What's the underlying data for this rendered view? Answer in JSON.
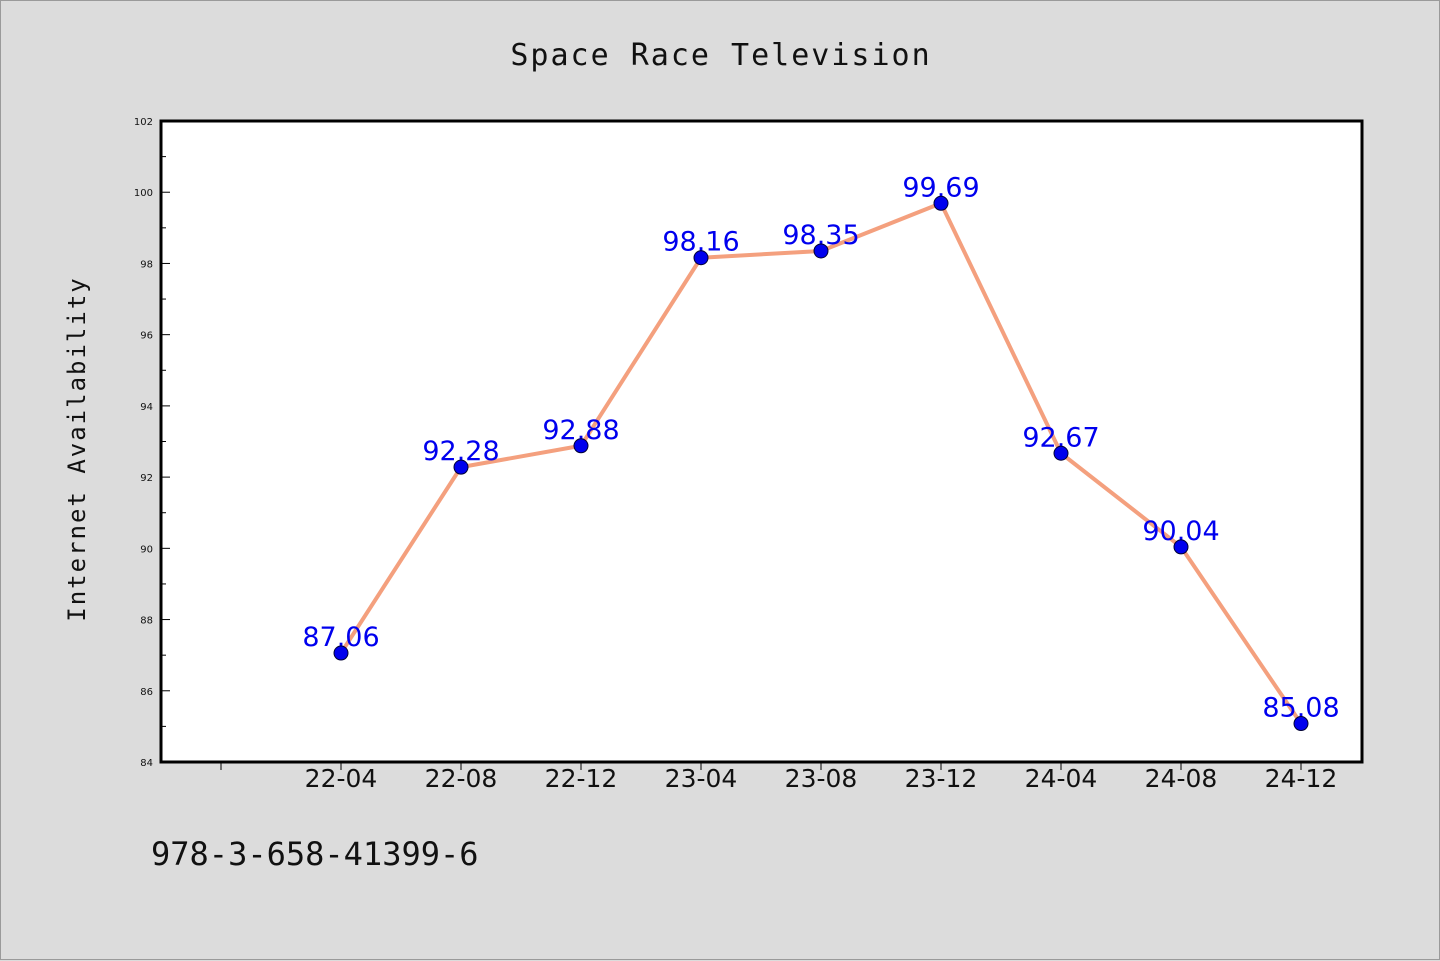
{
  "chart_data": {
    "type": "line",
    "title": "Space Race Television",
    "xlabel": "",
    "ylabel": "Internet Availability",
    "categories": [
      "22-04",
      "22-08",
      "22-12",
      "23-04",
      "23-08",
      "23-12",
      "24-04",
      "24-08",
      "24-12"
    ],
    "series": [
      {
        "values": [
          87.06,
          92.28,
          92.88,
          98.16,
          98.35,
          99.69,
          92.67,
          90.04,
          85.08
        ],
        "value_labels": [
          "87.06",
          "92.28",
          "92.88",
          "98.16",
          "98.35",
          "99.69",
          "92.67",
          "90.04",
          "85.08"
        ],
        "line_color": "#f4a07e",
        "marker_color": "#0000ee",
        "label_color": "#0000ee"
      }
    ],
    "ylim": [
      84,
      102
    ],
    "yticks": [
      "84",
      "86",
      "88",
      "90",
      "92",
      "94",
      "96",
      "98",
      "100",
      "102"
    ],
    "grid": false,
    "legend": "none"
  },
  "caption": "978-3-658-41399-6",
  "colors": {
    "background": "#dcdcdc",
    "plot_background": "#ffffff",
    "axis": "#000000"
  }
}
